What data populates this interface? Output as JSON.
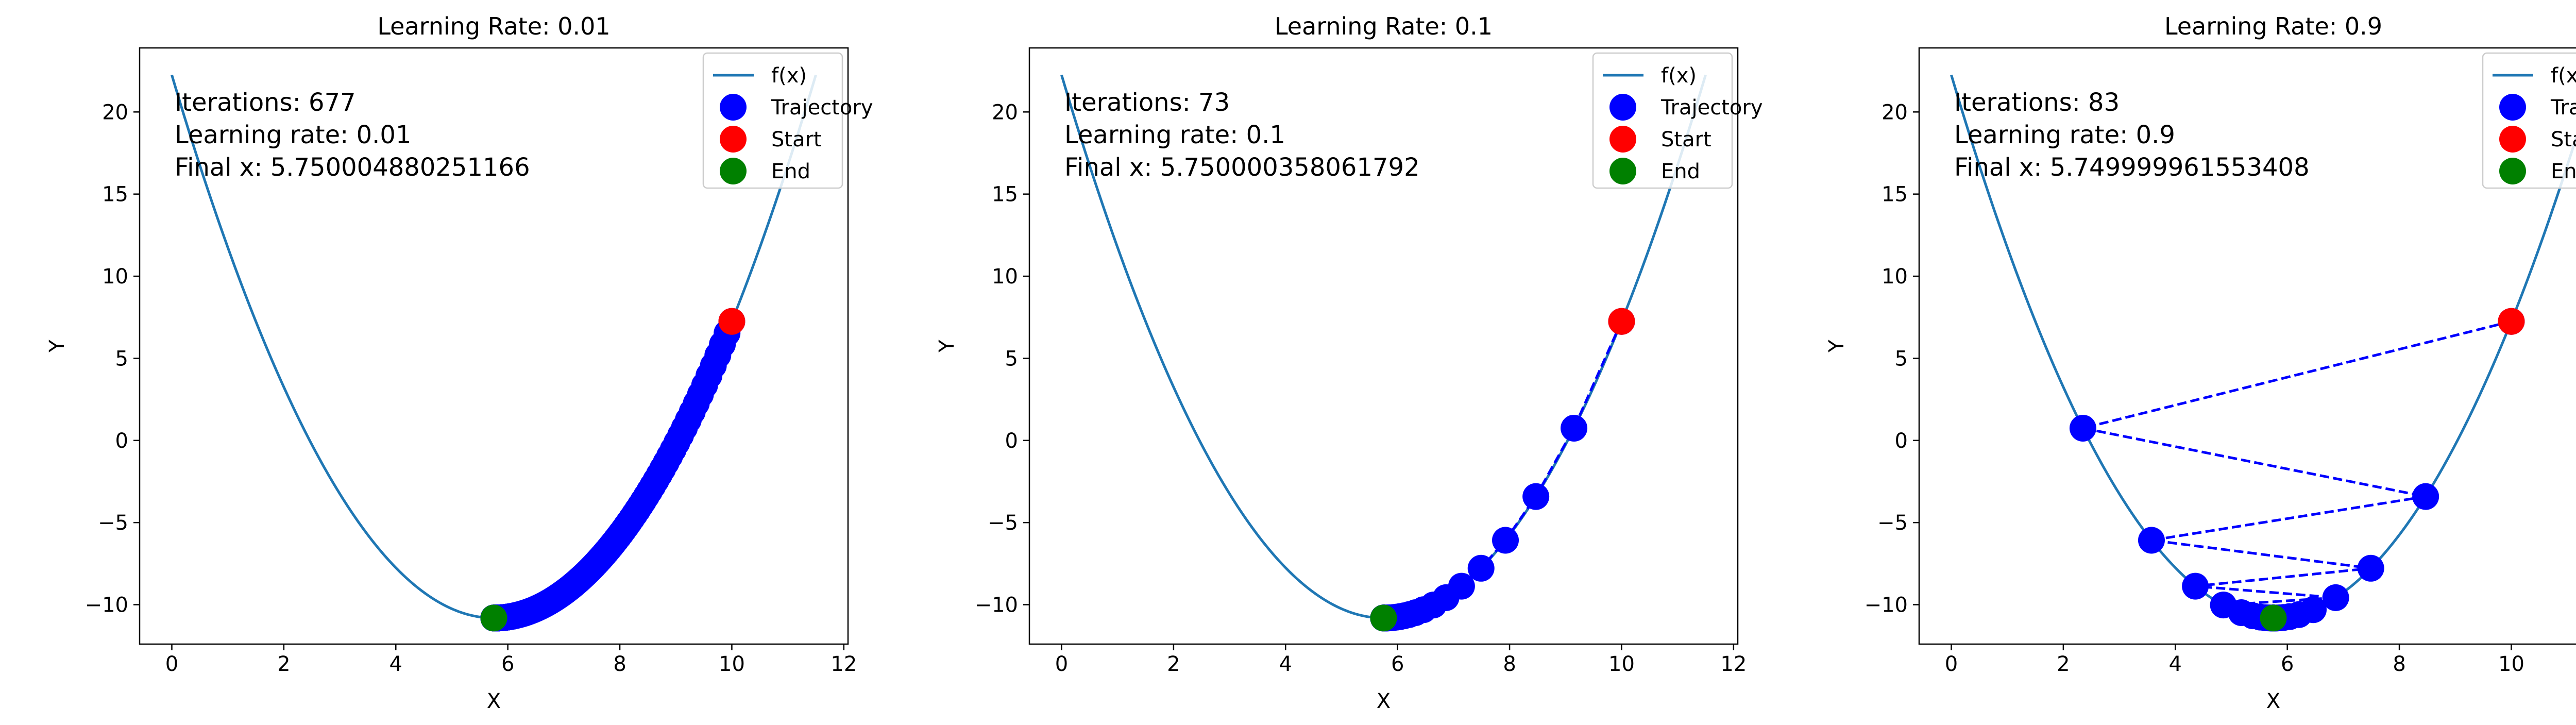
{
  "chart_data": [
    {
      "type": "line",
      "title": "Learning Rate: 0.01",
      "xlabel": "X",
      "ylabel": "Y",
      "xlim": [
        -0.575,
        12.075
      ],
      "ylim": [
        -12.4,
        23.9
      ],
      "xticks": [
        0,
        2,
        4,
        6,
        8,
        10,
        12
      ],
      "yticks": [
        -10,
        -5,
        0,
        5,
        10,
        15,
        20
      ],
      "grid": false,
      "legend_position": "top-right",
      "function": {
        "name": "f(x)",
        "coeffs": [
          1,
          -11.5,
          22.25
        ],
        "x_range": [
          0,
          11.5
        ],
        "color": "#1f77b4"
      },
      "annotation": [
        "Iterations: 677",
        "Learning rate: 0.01",
        "Final x: 5.750004880251166"
      ],
      "trajectory": {
        "name": "Trajectory",
        "color": "#0000ff",
        "start_x": 10,
        "rate": 0.01,
        "iterations": 677
      },
      "start": {
        "name": "Start",
        "x": 10,
        "y": 7.25,
        "color": "#ff0000"
      },
      "end": {
        "name": "End",
        "x": 5.750004880251166,
        "y": -10.8125,
        "color": "#008000"
      }
    },
    {
      "type": "line",
      "title": "Learning Rate: 0.1",
      "xlabel": "X",
      "ylabel": "Y",
      "xlim": [
        -0.575,
        12.075
      ],
      "ylim": [
        -12.4,
        23.9
      ],
      "xticks": [
        0,
        2,
        4,
        6,
        8,
        10,
        12
      ],
      "yticks": [
        -10,
        -5,
        0,
        5,
        10,
        15,
        20
      ],
      "grid": false,
      "legend_position": "top-right",
      "function": {
        "name": "f(x)",
        "coeffs": [
          1,
          -11.5,
          22.25
        ],
        "x_range": [
          0,
          11.5
        ],
        "color": "#1f77b4"
      },
      "annotation": [
        "Iterations: 73",
        "Learning rate: 0.1",
        "Final x: 5.750000358061792"
      ],
      "trajectory": {
        "name": "Trajectory",
        "color": "#0000ff",
        "start_x": 10,
        "rate": 0.1,
        "iterations": 73
      },
      "start": {
        "name": "Start",
        "x": 10,
        "y": 7.25,
        "color": "#ff0000"
      },
      "end": {
        "name": "End",
        "x": 5.750000358061792,
        "y": -10.8125,
        "color": "#008000"
      }
    },
    {
      "type": "line",
      "title": "Learning Rate: 0.9",
      "xlabel": "X",
      "ylabel": "Y",
      "xlim": [
        -0.575,
        12.075
      ],
      "ylim": [
        -12.4,
        23.9
      ],
      "xticks": [
        0,
        2,
        4,
        6,
        8,
        10,
        12
      ],
      "yticks": [
        -10,
        -5,
        0,
        5,
        10,
        15,
        20
      ],
      "grid": false,
      "legend_position": "top-right",
      "function": {
        "name": "f(x)",
        "coeffs": [
          1,
          -11.5,
          22.25
        ],
        "x_range": [
          0,
          11.5
        ],
        "color": "#1f77b4"
      },
      "annotation": [
        "Iterations: 83",
        "Learning rate: 0.9",
        "Final x: 5.749999961553408"
      ],
      "trajectory": {
        "name": "Trajectory",
        "color": "#0000ff",
        "start_x": 10,
        "rate": 0.9,
        "iterations": 83
      },
      "start": {
        "name": "Start",
        "x": 10,
        "y": 7.25,
        "color": "#ff0000"
      },
      "end": {
        "name": "End",
        "x": 5.749999961553408,
        "y": -10.8125,
        "color": "#008000"
      }
    }
  ]
}
